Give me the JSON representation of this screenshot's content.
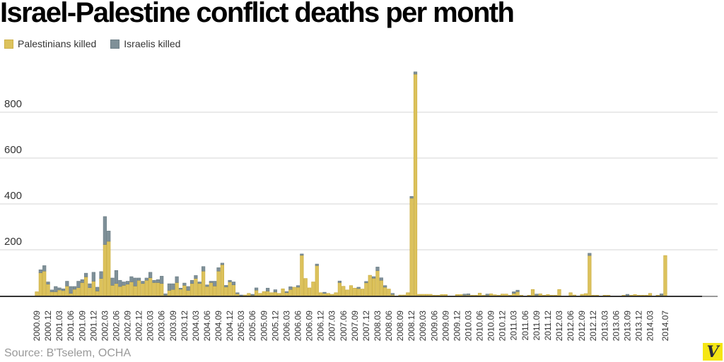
{
  "chart_data": {
    "type": "bar",
    "stacked": true,
    "title": "Israel-Palestine conflict deaths per month",
    "source": "Source: B'Tselem, OCHA",
    "legend_placement": "top-left",
    "grid": true,
    "ylim": [
      0,
      1000
    ],
    "yticks": [
      "200",
      "400",
      "600",
      "800"
    ],
    "ytick_values": [
      200,
      400,
      600,
      800
    ],
    "xtick_labels": [
      "2000.09",
      "2000.12",
      "2001.03",
      "2001.06",
      "2001.09",
      "2001.12",
      "2002.03",
      "2002.06",
      "2002.09",
      "2002.12",
      "2003.03",
      "2003.06",
      "2003.09",
      "2003.12",
      "2004.03",
      "2004.06",
      "2004.09",
      "2004.12",
      "2005.03",
      "2005.06",
      "2005.09",
      "2005.12",
      "2006.03",
      "2006.06",
      "2006.09",
      "2006.12",
      "2007.03",
      "2007.06",
      "2007.09",
      "2007.12",
      "2008.03",
      "2008.06",
      "2008.09",
      "2008.12",
      "2009.03",
      "2009.06",
      "2009.09",
      "2009.12",
      "2010.03",
      "2010.06",
      "2010.09",
      "2010.12",
      "2011.03",
      "2011.06",
      "2011.09",
      "2011.12",
      "2012.03",
      "2012.06",
      "2012.09",
      "2012.12",
      "2013.03",
      "2013.06",
      "2013.09",
      "2013.12",
      "2014.03",
      "2014.07"
    ],
    "colors": {
      "Palestinians killed": "#dcc25c",
      "Israelis killed": "#7f9098"
    },
    "series": [
      {
        "name": "Palestinians killed"
      },
      {
        "name": "Israelis killed"
      }
    ],
    "records_format": [
      "month",
      "Palestinians killed",
      "Israelis killed"
    ],
    "records": [
      [
        "2000.09",
        17,
        0
      ],
      [
        "2000.10",
        100,
        13
      ],
      [
        "2000.11",
        107,
        24
      ],
      [
        "2000.12",
        50,
        10
      ],
      [
        "2001.01",
        17,
        8
      ],
      [
        "2001.02",
        17,
        23
      ],
      [
        "2001.03",
        25,
        9
      ],
      [
        "2001.04",
        22,
        8
      ],
      [
        "2001.05",
        42,
        21
      ],
      [
        "2001.06",
        10,
        30
      ],
      [
        "2001.07",
        28,
        12
      ],
      [
        "2001.08",
        35,
        28
      ],
      [
        "2001.09",
        57,
        13
      ],
      [
        "2001.10",
        82,
        16
      ],
      [
        "2001.11",
        35,
        17
      ],
      [
        "2001.12",
        63,
        39
      ],
      [
        "2002.01",
        20,
        17
      ],
      [
        "2002.02",
        75,
        30
      ],
      [
        "2002.03",
        223,
        122
      ],
      [
        "2002.04",
        237,
        45
      ],
      [
        "2002.05",
        45,
        32
      ],
      [
        "2002.06",
        53,
        57
      ],
      [
        "2002.07",
        40,
        27
      ],
      [
        "2002.08",
        45,
        15
      ],
      [
        "2002.09",
        50,
        13
      ],
      [
        "2002.10",
        60,
        23
      ],
      [
        "2002.11",
        42,
        35
      ],
      [
        "2002.12",
        67,
        10
      ],
      [
        "2003.01",
        53,
        10
      ],
      [
        "2003.02",
        67,
        10
      ],
      [
        "2003.03",
        78,
        24
      ],
      [
        "2003.04",
        57,
        10
      ],
      [
        "2003.05",
        57,
        13
      ],
      [
        "2003.06",
        53,
        32
      ],
      [
        "2003.07",
        2,
        6
      ],
      [
        "2003.08",
        23,
        29
      ],
      [
        "2003.09",
        27,
        25
      ],
      [
        "2003.10",
        57,
        26
      ],
      [
        "2003.11",
        28,
        5
      ],
      [
        "2003.12",
        45,
        10
      ],
      [
        "2004.01",
        23,
        17
      ],
      [
        "2004.02",
        53,
        14
      ],
      [
        "2004.03",
        75,
        13
      ],
      [
        "2004.04",
        53,
        7
      ],
      [
        "2004.05",
        107,
        20
      ],
      [
        "2004.06",
        40,
        7
      ],
      [
        "2004.07",
        57,
        6
      ],
      [
        "2004.08",
        42,
        21
      ],
      [
        "2004.09",
        107,
        15
      ],
      [
        "2004.10",
        135,
        7
      ],
      [
        "2004.11",
        38,
        7
      ],
      [
        "2004.12",
        60,
        7
      ],
      [
        "2005.01",
        47,
        13
      ],
      [
        "2005.02",
        8,
        5
      ],
      [
        "2005.03",
        0,
        3
      ],
      [
        "2005.04",
        3,
        0
      ],
      [
        "2005.05",
        10,
        0
      ],
      [
        "2005.06",
        2,
        4
      ],
      [
        "2005.07",
        24,
        10
      ],
      [
        "2005.08",
        10,
        0
      ],
      [
        "2005.09",
        18,
        0
      ],
      [
        "2005.10",
        20,
        13
      ],
      [
        "2005.11",
        13,
        0
      ],
      [
        "2005.12",
        16,
        10
      ],
      [
        "2006.01",
        10,
        0
      ],
      [
        "2006.02",
        30,
        0
      ],
      [
        "2006.03",
        13,
        5
      ],
      [
        "2006.04",
        27,
        12
      ],
      [
        "2006.05",
        37,
        0
      ],
      [
        "2006.06",
        37,
        7
      ],
      [
        "2006.07",
        176,
        6
      ],
      [
        "2006.08",
        75,
        0
      ],
      [
        "2006.09",
        34,
        0
      ],
      [
        "2006.10",
        60,
        0
      ],
      [
        "2006.11",
        131,
        7
      ],
      [
        "2006.12",
        13,
        0
      ],
      [
        "2007.01",
        10,
        5
      ],
      [
        "2007.02",
        10,
        0
      ],
      [
        "2007.03",
        6,
        0
      ],
      [
        "2007.04",
        13,
        0
      ],
      [
        "2007.05",
        57,
        7
      ],
      [
        "2007.06",
        41,
        0
      ],
      [
        "2007.07",
        25,
        0
      ],
      [
        "2007.08",
        44,
        0
      ],
      [
        "2007.09",
        33,
        0
      ],
      [
        "2007.10",
        31,
        6
      ],
      [
        "2007.11",
        29,
        0
      ],
      [
        "2007.12",
        56,
        6
      ],
      [
        "2008.01",
        89,
        0
      ],
      [
        "2008.02",
        76,
        7
      ],
      [
        "2008.03",
        109,
        16
      ],
      [
        "2008.04",
        67,
        11
      ],
      [
        "2008.05",
        37,
        7
      ],
      [
        "2008.06",
        29,
        0
      ],
      [
        "2008.07",
        5,
        5
      ],
      [
        "2008.08",
        0,
        0
      ],
      [
        "2008.09",
        3,
        0
      ],
      [
        "2008.10",
        3,
        0
      ],
      [
        "2008.11",
        13,
        0
      ],
      [
        "2008.12",
        425,
        8
      ],
      [
        "2009.01",
        966,
        10
      ],
      [
        "2009.02",
        6,
        0
      ],
      [
        "2009.03",
        6,
        0
      ],
      [
        "2009.04",
        6,
        0
      ],
      [
        "2009.05",
        6,
        0
      ],
      [
        "2009.06",
        2,
        0
      ],
      [
        "2009.07",
        2,
        0
      ],
      [
        "2009.08",
        5,
        0
      ],
      [
        "2009.09",
        5,
        0
      ],
      [
        "2009.10",
        0,
        0
      ],
      [
        "2009.11",
        0,
        0
      ],
      [
        "2009.12",
        5,
        0
      ],
      [
        "2010.01",
        5,
        0
      ],
      [
        "2010.02",
        2,
        5
      ],
      [
        "2010.03",
        3,
        5
      ],
      [
        "2010.04",
        2,
        0
      ],
      [
        "2010.05",
        2,
        0
      ],
      [
        "2010.06",
        11,
        0
      ],
      [
        "2010.07",
        2,
        0
      ],
      [
        "2010.08",
        2,
        5
      ],
      [
        "2010.09",
        8,
        0
      ],
      [
        "2010.10",
        4,
        0
      ],
      [
        "2010.11",
        2,
        0
      ],
      [
        "2010.12",
        7,
        0
      ],
      [
        "2011.01",
        7,
        0
      ],
      [
        "2011.02",
        2,
        0
      ],
      [
        "2011.03",
        10,
        7
      ],
      [
        "2011.04",
        17,
        7
      ],
      [
        "2011.05",
        2,
        0
      ],
      [
        "2011.06",
        0,
        0
      ],
      [
        "2011.07",
        2,
        0
      ],
      [
        "2011.08",
        27,
        0
      ],
      [
        "2011.09",
        2,
        5
      ],
      [
        "2011.10",
        8,
        0
      ],
      [
        "2011.11",
        2,
        0
      ],
      [
        "2011.12",
        5,
        0
      ],
      [
        "2012.01",
        2,
        0
      ],
      [
        "2012.02",
        2,
        0
      ],
      [
        "2012.03",
        27,
        0
      ],
      [
        "2012.04",
        0,
        0
      ],
      [
        "2012.05",
        0,
        0
      ],
      [
        "2012.06",
        13,
        0
      ],
      [
        "2012.07",
        3,
        0
      ],
      [
        "2012.08",
        0,
        0
      ],
      [
        "2012.09",
        6,
        0
      ],
      [
        "2012.10",
        9,
        0
      ],
      [
        "2012.11",
        175,
        10
      ],
      [
        "2012.12",
        2,
        0
      ],
      [
        "2013.01",
        2,
        0
      ],
      [
        "2013.02",
        0,
        0
      ],
      [
        "2013.03",
        2,
        0
      ],
      [
        "2013.04",
        2,
        0
      ],
      [
        "2013.05",
        0,
        0
      ],
      [
        "2013.06",
        0,
        0
      ],
      [
        "2013.07",
        0,
        0
      ],
      [
        "2013.08",
        2,
        0
      ],
      [
        "2013.09",
        1,
        5
      ],
      [
        "2013.10",
        2,
        0
      ],
      [
        "2013.11",
        5,
        0
      ],
      [
        "2013.12",
        2,
        0
      ],
      [
        "2014.01",
        2,
        0
      ],
      [
        "2014.02",
        2,
        0
      ],
      [
        "2014.03",
        10,
        0
      ],
      [
        "2014.04",
        0,
        0
      ],
      [
        "2014.05",
        2,
        0
      ],
      [
        "2014.06",
        2,
        6
      ],
      [
        "2014.07",
        175,
        0
      ]
    ]
  },
  "logo": {
    "text": "V"
  }
}
